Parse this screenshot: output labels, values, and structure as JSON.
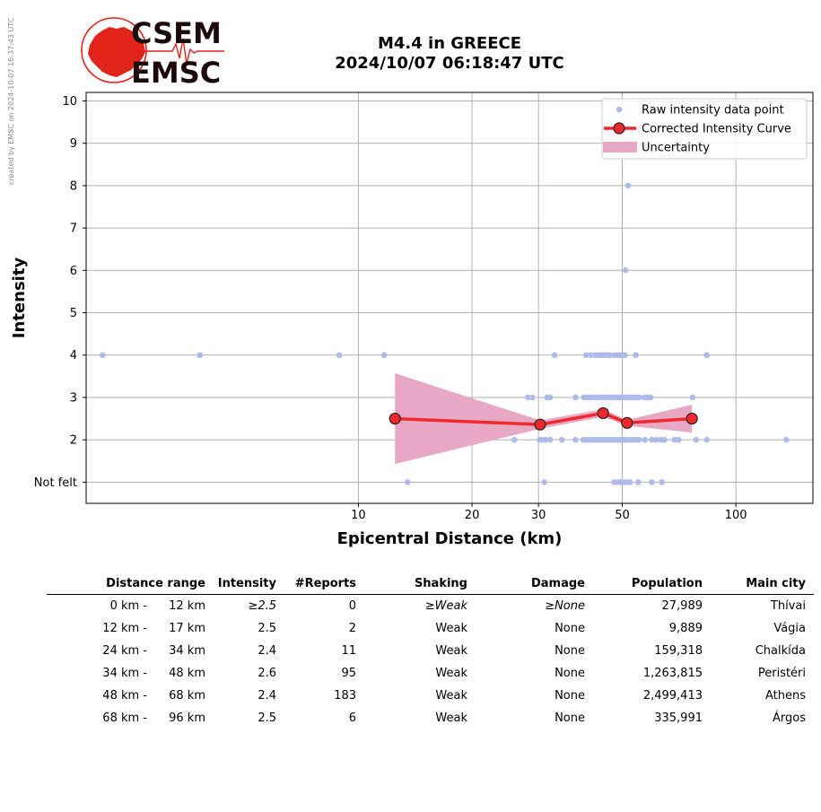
{
  "logo": {
    "top_text": "CSEM",
    "bottom_text": "EMSC",
    "colors": {
      "red": "#e2231a",
      "dark": "#1a0a0a"
    }
  },
  "side_note": "created by EMSC on 2024-10-07 16:37:43 UTC",
  "title": {
    "line1": "M4.4 in GREECE",
    "line2": "2024/10/07 06:18:47 UTC"
  },
  "chart_data": {
    "type": "scatter",
    "title": "M4.4 in GREECE 2024/10/07 06:18:47 UTC",
    "xlabel": "Epicentral Distance (km)",
    "ylabel": "Intensity",
    "x_scale": "log",
    "xlim": [
      1.9,
      160
    ],
    "ylim": [
      0.5,
      10.2
    ],
    "x_ticks": [
      10,
      20,
      30,
      50,
      100
    ],
    "y_ticks": [
      {
        "value": 1,
        "label": "Not felt"
      },
      {
        "value": 2,
        "label": "2"
      },
      {
        "value": 3,
        "label": "3"
      },
      {
        "value": 4,
        "label": "4"
      },
      {
        "value": 5,
        "label": "5"
      },
      {
        "value": 6,
        "label": "6"
      },
      {
        "value": 7,
        "label": "7"
      },
      {
        "value": 8,
        "label": "8"
      },
      {
        "value": 9,
        "label": "9"
      },
      {
        "value": 10,
        "label": "10"
      }
    ],
    "grid": true,
    "legend_position": "top-right",
    "legend": [
      {
        "key": "raw",
        "label": "Raw intensity data point"
      },
      {
        "key": "curve",
        "label": "Corrected Intensity Curve"
      },
      {
        "key": "band",
        "label": "Uncertainty"
      }
    ],
    "colors": {
      "raw": "#aebbe8",
      "curve": "#f0282d",
      "band": "#e8a8c3",
      "marker_edge": "#222222"
    },
    "series": [
      {
        "key": "raw",
        "points": [
          [
            2.1,
            4
          ],
          [
            3.8,
            4
          ],
          [
            8.9,
            4
          ],
          [
            11.7,
            4
          ],
          [
            33.1,
            4
          ],
          [
            40.1,
            4
          ],
          [
            41.3,
            4
          ],
          [
            42.5,
            4
          ],
          [
            43.4,
            4
          ],
          [
            44.2,
            4
          ],
          [
            44.9,
            4
          ],
          [
            45.6,
            4
          ],
          [
            46.4,
            4
          ],
          [
            47.8,
            4
          ],
          [
            48.5,
            4
          ],
          [
            49.4,
            4
          ],
          [
            50.2,
            4
          ],
          [
            50.8,
            4
          ],
          [
            54.3,
            4
          ],
          [
            83.7,
            4
          ],
          [
            28.1,
            3
          ],
          [
            28.9,
            3
          ],
          [
            31.6,
            3
          ],
          [
            32.2,
            3
          ],
          [
            37.6,
            3
          ],
          [
            39.6,
            3
          ],
          [
            40.4,
            3
          ],
          [
            41.2,
            3
          ],
          [
            42.1,
            3
          ],
          [
            42.9,
            3
          ],
          [
            43.8,
            3
          ],
          [
            44.6,
            3
          ],
          [
            45.5,
            3
          ],
          [
            46.3,
            3
          ],
          [
            47.2,
            3
          ],
          [
            48.1,
            3
          ],
          [
            48.9,
            3
          ],
          [
            49.8,
            3
          ],
          [
            50.7,
            3
          ],
          [
            51.6,
            3
          ],
          [
            52.5,
            3
          ],
          [
            53.5,
            3
          ],
          [
            54.5,
            3
          ],
          [
            55.4,
            3
          ],
          [
            57.2,
            3
          ],
          [
            58.3,
            3
          ],
          [
            59.4,
            3
          ],
          [
            76.8,
            3
          ],
          [
            25.9,
            2
          ],
          [
            30.2,
            2
          ],
          [
            30.8,
            2
          ],
          [
            31.3,
            2
          ],
          [
            32.2,
            2
          ],
          [
            34.6,
            2
          ],
          [
            37.6,
            2
          ],
          [
            39.4,
            2
          ],
          [
            40.2,
            2
          ],
          [
            41.0,
            2
          ],
          [
            41.8,
            2
          ],
          [
            42.6,
            2
          ],
          [
            43.5,
            2
          ],
          [
            44.3,
            2
          ],
          [
            45.2,
            2
          ],
          [
            46.0,
            2
          ],
          [
            46.9,
            2
          ],
          [
            47.8,
            2
          ],
          [
            48.7,
            2
          ],
          [
            49.6,
            2
          ],
          [
            50.5,
            2
          ],
          [
            51.5,
            2
          ],
          [
            52.4,
            2
          ],
          [
            53.4,
            2
          ],
          [
            54.4,
            2
          ],
          [
            55.4,
            2
          ],
          [
            57.4,
            2
          ],
          [
            59.9,
            2
          ],
          [
            61.5,
            2
          ],
          [
            63.3,
            2
          ],
          [
            64.7,
            2
          ],
          [
            68.8,
            2
          ],
          [
            70.5,
            2
          ],
          [
            78.4,
            2
          ],
          [
            83.7,
            2
          ],
          [
            136,
            2
          ],
          [
            13.5,
            1
          ],
          [
            31.1,
            1
          ],
          [
            47.6,
            1
          ],
          [
            48.8,
            1
          ],
          [
            49.7,
            1
          ],
          [
            50.5,
            1
          ],
          [
            51.5,
            1
          ],
          [
            52.4,
            1
          ],
          [
            55.1,
            1
          ],
          [
            59.9,
            1
          ],
          [
            63.7,
            1
          ],
          [
            51.0,
            6
          ],
          [
            51.8,
            8
          ]
        ]
      },
      {
        "key": "curve",
        "points": [
          [
            12.5,
            2.5
          ],
          [
            30.3,
            2.36
          ],
          [
            44.5,
            2.63
          ],
          [
            51.5,
            2.4
          ],
          [
            76.5,
            2.5
          ]
        ]
      },
      {
        "key": "band",
        "upper": [
          [
            12.5,
            3.57
          ],
          [
            30.3,
            2.46
          ],
          [
            44.5,
            2.72
          ],
          [
            51.5,
            2.47
          ],
          [
            76.5,
            2.83
          ]
        ],
        "lower": [
          [
            12.5,
            1.43
          ],
          [
            30.3,
            2.26
          ],
          [
            44.5,
            2.54
          ],
          [
            51.5,
            2.33
          ],
          [
            76.5,
            2.17
          ]
        ]
      }
    ]
  },
  "table": {
    "headers": [
      "Distance range",
      "Intensity",
      "#Reports",
      "Shaking",
      "Damage",
      "Population",
      "Main city"
    ],
    "rows": [
      {
        "dfrom": "0 km -",
        "dto": "12 km",
        "intensity": "≥2.5",
        "reports": "0",
        "shaking": "≥Weak",
        "damage": "≥None",
        "population": "27,989",
        "city": "Thívai"
      },
      {
        "dfrom": "12 km -",
        "dto": "17 km",
        "intensity": "2.5",
        "reports": "2",
        "shaking": "Weak",
        "damage": "None",
        "population": "9,889",
        "city": "Vágia"
      },
      {
        "dfrom": "24 km -",
        "dto": "34 km",
        "intensity": "2.4",
        "reports": "11",
        "shaking": "Weak",
        "damage": "None",
        "population": "159,318",
        "city": "Chalkída"
      },
      {
        "dfrom": "34 km -",
        "dto": "48 km",
        "intensity": "2.6",
        "reports": "95",
        "shaking": "Weak",
        "damage": "None",
        "population": "1,263,815",
        "city": "Peristéri"
      },
      {
        "dfrom": "48 km -",
        "dto": "68 km",
        "intensity": "2.4",
        "reports": "183",
        "shaking": "Weak",
        "damage": "None",
        "population": "2,499,413",
        "city": "Athens"
      },
      {
        "dfrom": "68 km -",
        "dto": "96 km",
        "intensity": "2.5",
        "reports": "6",
        "shaking": "Weak",
        "damage": "None",
        "population": "335,991",
        "city": "Árgos"
      }
    ]
  }
}
